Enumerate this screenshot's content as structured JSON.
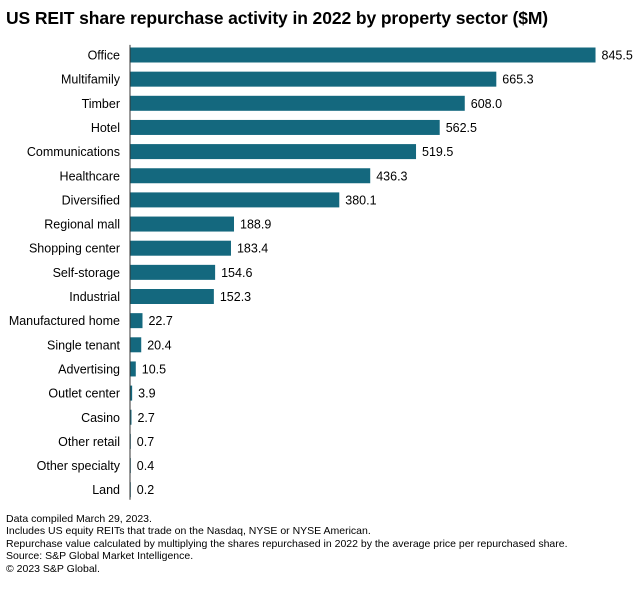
{
  "chart_data": {
    "type": "bar",
    "orientation": "horizontal",
    "title": "US REIT share repurchase activity in 2022 by property sector ($M)",
    "xlabel": "",
    "ylabel": "",
    "xlim": [
      0,
      850
    ],
    "grid": false,
    "bar_color": "#14687E",
    "axis_color": "#333333",
    "categories": [
      "Office",
      "Multifamily",
      "Timber",
      "Hotel",
      "Communications",
      "Healthcare",
      "Diversified",
      "Regional mall",
      "Shopping center",
      "Self-storage",
      "Industrial",
      "Manufactured home",
      "Single tenant",
      "Advertising",
      "Outlet center",
      "Casino",
      "Other retail",
      "Other specialty",
      "Land"
    ],
    "values": [
      845.5,
      665.3,
      608.0,
      562.5,
      519.5,
      436.3,
      380.1,
      188.9,
      183.4,
      154.6,
      152.3,
      22.7,
      20.4,
      10.5,
      3.9,
      2.7,
      0.7,
      0.4,
      0.2
    ],
    "value_labels": [
      "845.5",
      "665.3",
      "608.0",
      "562.5",
      "519.5",
      "436.3",
      "380.1",
      "188.9",
      "183.4",
      "154.6",
      "152.3",
      "22.7",
      "20.4",
      "10.5",
      "3.9",
      "2.7",
      "0.7",
      "0.4",
      "0.2"
    ]
  },
  "footnotes": [
    "Data compiled March 29, 2023.",
    "Includes US equity REITs that trade on the Nasdaq, NYSE or NYSE American.",
    "Repurchase value calculated by multiplying the shares repurchased in 2022 by the average price per repurchased share.",
    "Source: S&P Global Market Intelligence.",
    "© 2023 S&P Global."
  ]
}
